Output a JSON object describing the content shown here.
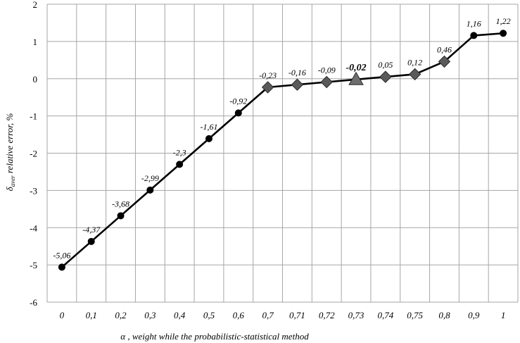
{
  "chart_data": {
    "type": "line",
    "categories": [
      "0",
      "0,1",
      "0,2",
      "0,3",
      "0,4",
      "0,5",
      "0,6",
      "0,7",
      "0,71",
      "0,72",
      "0,73",
      "0,74",
      "0,75",
      "0,8",
      "0,9",
      "1"
    ],
    "values": [
      -5.06,
      -4.37,
      -3.68,
      -2.99,
      -2.3,
      -1.61,
      -0.92,
      -0.23,
      -0.16,
      -0.09,
      -0.02,
      0.05,
      0.12,
      0.46,
      1.16,
      1.22
    ],
    "data_labels": [
      "-5,06",
      "-4,37",
      "-3,68",
      "-2,99",
      "-2,3",
      "-1,61",
      "-0,92",
      "-0,23",
      "-0,16",
      "-0,09",
      "-0,02",
      "0,05",
      "0,12",
      "0,46",
      "1,16",
      "1,22"
    ],
    "markers": [
      "circle",
      "circle",
      "circle",
      "circle",
      "circle",
      "circle",
      "circle",
      "diamond",
      "diamond",
      "diamond",
      "triangle",
      "diamond",
      "diamond",
      "diamond",
      "circle",
      "circle"
    ],
    "highlight_index": 10,
    "ylim": [
      -6,
      2
    ],
    "yticks": [
      -6,
      -5,
      -4,
      -3,
      -2,
      -1,
      0,
      1,
      2
    ],
    "ytick_labels": [
      "-6",
      "-5",
      "-4",
      "-3",
      "-2",
      "-1",
      "0",
      "1",
      "2"
    ],
    "xlabel": "α , weight while the probabilistic-statistical method",
    "ylabel_symbol": "δ",
    "ylabel_subscript": "aver",
    "ylabel_text": "  relative error, %",
    "grid": true,
    "legend": "none",
    "colors": {
      "line": "#000000",
      "circle_marker": "#000000",
      "diamond_marker": "#5a5a5a",
      "triangle_marker": "#6e6e6e",
      "grid": "#a6a6a6"
    }
  }
}
